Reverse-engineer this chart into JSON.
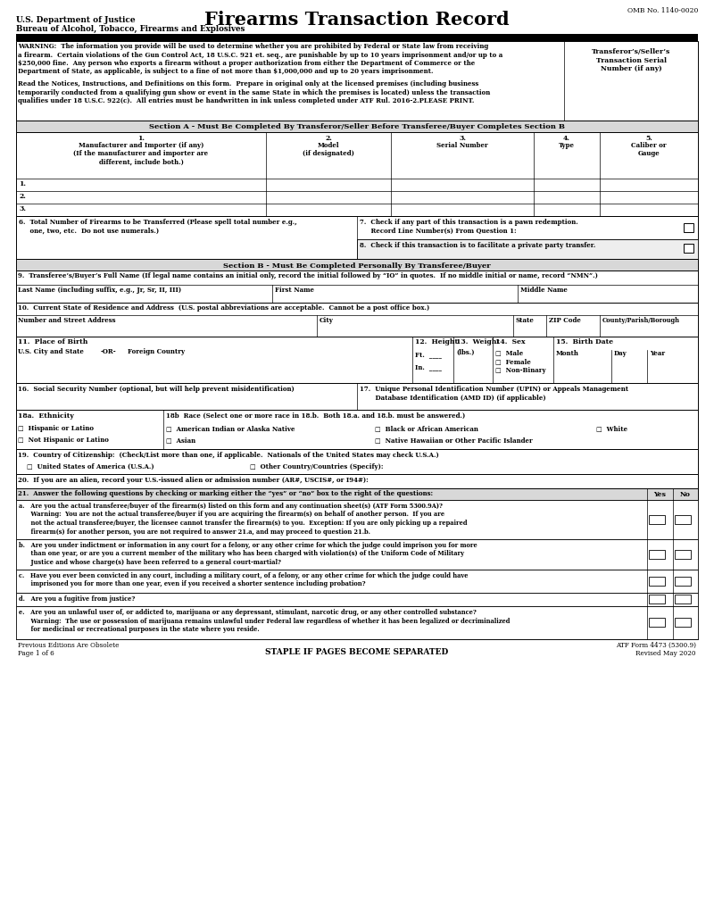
{
  "title": "Firearms Transaction Record",
  "omb": "OMB No. 1140-0020",
  "dept1": "U.S. Department of Justice",
  "dept2": "Bureau of Alcohol, Tobacco, Firearms and Explosives",
  "warning_text": "WARNING:  The information you provide will be used to determine whether you are prohibited by Federal or State law from receiving a firearm.  Certain violations of the Gun Control Act, 18 U.S.C. 921 et. seq., are punishable by up to 10 years imprisonment and/or up to a $250,000 fine.  Any person who exports a firearm without a proper authorization from either the Department of Commerce or the Department of State, as applicable, is subject to a fine of not more than $1,000,000 and up to 20 years imprisonment.",
  "read_text": "Read the Notices, Instructions, and Definitions on this form.  Prepare in original only at the licensed premises (including business temporarily conducted from a qualifying gun show or event in the same State in which the premises is located) unless the transaction qualifies under 18 U.S.C. 922(c).  All entries must be handwritten in ink unless completed under ATF Rul. 2016-2.PLEASE PRINT.",
  "transferor_box": "Transferor’s/Seller’s\nTransaction Serial\nNumber (if any)",
  "section_a_title": "Section A - Must Be Completed By Transferor/Seller Before Transferee/Buyer Completes Section B",
  "section_b_title": "Section B - Must Be Completed Personally By Transferee/Buyer",
  "q6_text": "6.  Total Number of Firearms to be Transferred (Please spell total number e.g.,\n     one, two, etc.  Do not use numerals.)",
  "q7_text": "7.  Check if any part of this transaction is a pawn redemption.\n     Record Line Number(s) From Question 1:",
  "q8_text": "8.  Check if this transaction is to facilitate a private party transfer.",
  "q9_text": "9.  Transferee’s/Buyer’s Full Name (If legal name contains an initial only, record the initial followed by “IO” in quotes.  If no middle initial or name, record “NMN”.)",
  "q10_text": "10.  Current State of Residence and Address  (U.S. postal abbreviations are acceptable.  Cannot be a post office box.)",
  "q16_text": "16.  Social Security Number (optional, but will help prevent misidentification)",
  "q17_text": "17.  Unique Personal Identification Number (UPIN) or Appeals Management\n       Database Identification (AMD ID) (if applicable)",
  "q18a_text": "18a.  Ethnicity",
  "q18b_text": "18b  Race (Select one or more race in 18.b.  Both 18.a. and 18.b. must be answered.)",
  "q19_text": "19.  Country of Citizenship:  (Check/List more than one, if applicable.  Nationals of the United States may check U.S.A.)",
  "q20_text": "20.  If you are an alien, record your U.S.-issued alien or admission number (AR#, USCIS#, or I94#):",
  "q21_text": "21.  Answer the following questions by checking or marking either the “yes” or “no” box to the right of the questions:",
  "q21a_text": "a.   Are you the actual transferee/buyer of the firearm(s) listed on this form and any continuation sheet(s) (ATF Form 5300.9A)?\n      Warning:  You are not the actual transferee/buyer if you are acquiring the firearm(s) on behalf of another person.  If you are\n      not the actual transferee/buyer, the licensee cannot transfer the firearm(s) to you.  Exception: If you are only picking up a repaired\n      firearm(s) for another person, you are not required to answer 21.a, and may proceed to question 21.b.",
  "q21b_text": "b.   Are you under indictment or information in any court for a felony, or any other crime for which the judge could imprison you for more\n      than one year, or are you a current member of the military who has been charged with violation(s) of the Uniform Code of Military\n      Justice and whose charge(s) have been referred to a general court-martial?",
  "q21c_text": "c.   Have you ever been convicted in any court, including a military court, of a felony, or any other crime for which the judge could have\n      imprisoned you for more than one year, even if you received a shorter sentence including probation?",
  "q21d_text": "d.   Are you a fugitive from justice?",
  "q21e_text": "e.   Are you an unlawful user of, or addicted to, marijuana or any depressant, stimulant, narcotic drug, or any other controlled substance?\n      Warning:  The use or possession of marijuana remains unlawful under Federal law regardless of whether it has been legalized or decriminalized\n      for medicinal or recreational purposes in the state where you reside.",
  "footer_left1": "Previous Editions Are Obsolete",
  "footer_left2": "Page 1 of 6",
  "footer_center": "STAPLE IF PAGES BECOME SEPARATED",
  "footer_right1": "ATF Form 4473 (5300.9)",
  "footer_right2": "Revised May 2020",
  "bg_color": "#ffffff"
}
